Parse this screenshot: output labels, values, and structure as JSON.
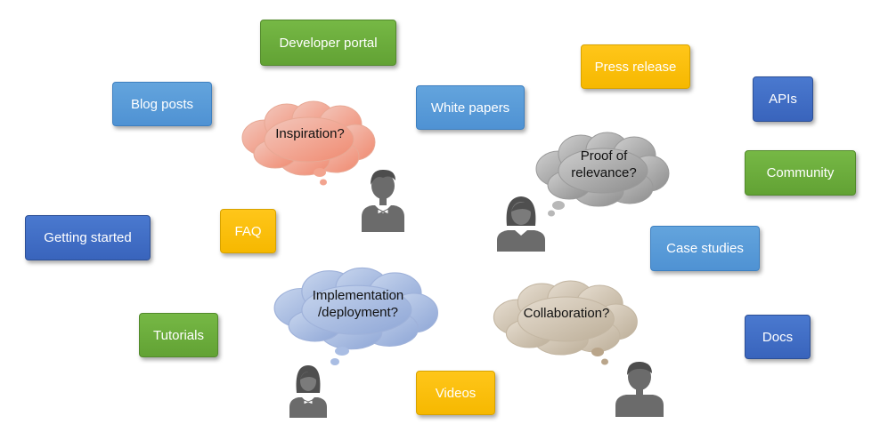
{
  "tags": {
    "developer_portal": "Developer portal",
    "press_release": "Press release",
    "blog_posts": "Blog posts",
    "white_papers": "White papers",
    "apis": "APIs",
    "community": "Community",
    "getting_started": "Getting started",
    "faq": "FAQ",
    "case_studies": "Case studies",
    "tutorials": "Tutorials",
    "docs": "Docs",
    "videos": "Videos"
  },
  "thoughts": {
    "inspiration": "Inspiration?",
    "relevance": "Proof of\nrelevance?",
    "implementation": "Implementation\n/deployment?",
    "collaboration": "Collaboration?"
  },
  "colors": {
    "green": "#6aab3a",
    "light_blue": "#5b9bd5",
    "dark_blue": "#4472c4",
    "yellow": "#ffc000",
    "cloud_pink": "#f6a894",
    "cloud_gray": "#a6a6a6",
    "cloud_blue": "#a6b9df",
    "cloud_tan": "#d4c7b5",
    "person_gray": "#6b6b6b"
  },
  "icons": [
    "person-male-bowtie-icon",
    "person-female-icon",
    "person-female-bowtie-icon",
    "person-male-icon"
  ]
}
